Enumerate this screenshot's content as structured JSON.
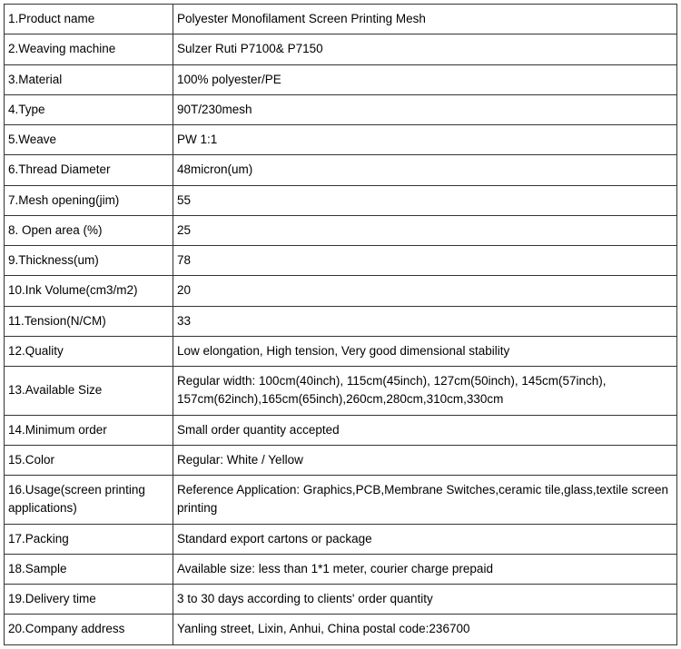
{
  "table": {
    "columns": {
      "label_width": 186
    },
    "border_color": "#333333",
    "background_color": "#ffffff",
    "text_color": "#000000",
    "font_size": 13.5,
    "rows": [
      {
        "label": "1.Product name",
        "value": "Polyester Monofilament Screen Printing Mesh"
      },
      {
        "label": "2.Weaving machine",
        "value": "Sulzer Ruti P7100& P7150"
      },
      {
        "label": "3.Material",
        "value": "100% polyester/PE"
      },
      {
        "label": "4.Type",
        "value": "90T/230mesh"
      },
      {
        "label": "5.Weave",
        "value": "PW 1:1"
      },
      {
        "label": "6.Thread Diameter",
        "value": "48micron(um)"
      },
      {
        "label": "7.Mesh opening(jim)",
        "value": "55"
      },
      {
        "label": "8. Open area (%)",
        "value": "25"
      },
      {
        "label": "9.Thickness(um)",
        "value": "78"
      },
      {
        "label": "10.Ink Volume(cm3/m2)",
        "value": "20"
      },
      {
        "label": "11.Tension(N/CM)",
        "value": "33"
      },
      {
        "label": "12.Quality",
        "value": "Low elongation, High tension, Very good dimensional stability"
      },
      {
        "label": "13.Available Size",
        "value": "Regular width: 100cm(40inch), 115cm(45inch), 127cm(50inch), 145cm(57inch), 157cm(62inch),165cm(65inch),260cm,280cm,310cm,330cm"
      },
      {
        "label": "14.Minimum order",
        "value": "Small order quantity accepted"
      },
      {
        "label": "15.Color",
        "value": "Regular: White / Yellow"
      },
      {
        "label": "16.Usage(screen printing applications)",
        "value": "Reference Application: Graphics,PCB,Membrane Switches,ceramic tile,glass,textile screen printing"
      },
      {
        "label": "17.Packing",
        "value": "Standard export cartons or package"
      },
      {
        "label": "18.Sample",
        "value": "Available size: less than 1*1 meter, courier charge prepaid"
      },
      {
        "label": "19.Delivery time",
        "value": "3 to 30 days according to clients' order quantity"
      },
      {
        "label": "20.Company address",
        "value": "Yanling street, Lixin, Anhui, China    postal code:236700"
      }
    ]
  }
}
